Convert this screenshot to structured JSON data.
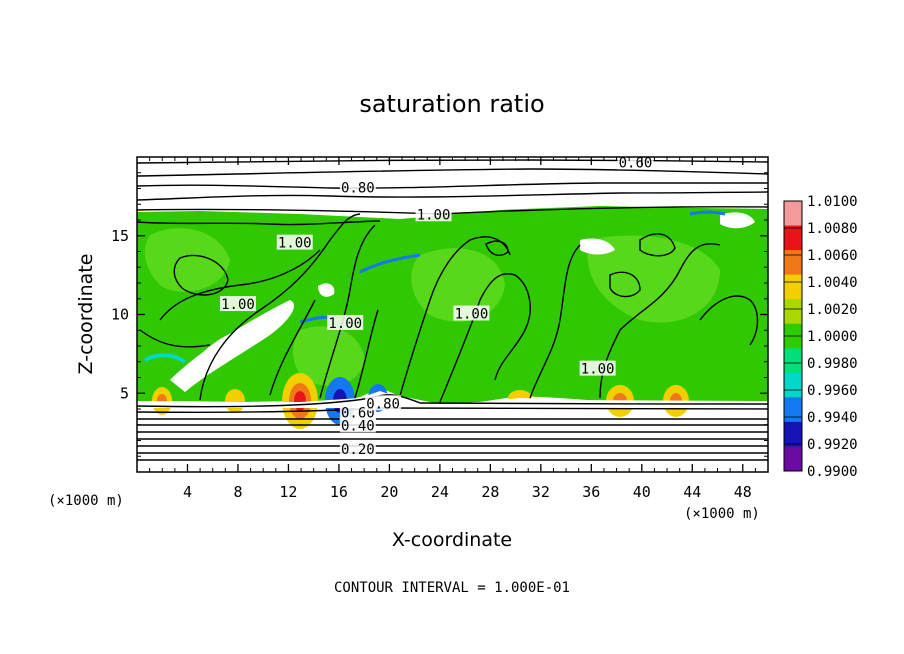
{
  "chart_data": {
    "type": "heatmap",
    "title": "saturation ratio",
    "xlabel": "X-coordinate",
    "ylabel": "Z-coordinate",
    "x_unit": "(×1000 m)",
    "z_unit": "(×1000 m)",
    "xlim": [
      0,
      50
    ],
    "ylim": [
      0,
      20
    ],
    "x_ticks": [
      4,
      8,
      12,
      16,
      20,
      24,
      28,
      32,
      36,
      40,
      44,
      48
    ],
    "y_ticks": [
      5,
      10,
      15
    ],
    "footer": "CONTOUR INTERVAL = 1.000E-01",
    "colorbar": {
      "labels": [
        "1.0100",
        "1.0080",
        "1.0060",
        "1.0040",
        "1.0020",
        "1.0000",
        "0.9980",
        "0.9960",
        "0.9940",
        "0.9920",
        "0.9900"
      ],
      "colors": [
        "#f59a9a",
        "#e8141a",
        "#f07818",
        "#f2d000",
        "#a8d800",
        "#2ecc00",
        "#00e07a",
        "#00d8c8",
        "#1478f0",
        "#1414b4",
        "#6a0aa0"
      ]
    },
    "contour_labels": [
      {
        "text": "0.20",
        "x": 17.5,
        "z": 1.4
      },
      {
        "text": "0.40",
        "x": 17.5,
        "z": 2.9
      },
      {
        "text": "0.60",
        "x": 17.5,
        "z": 3.7
      },
      {
        "text": "0.80",
        "x": 19.5,
        "z": 4.3
      },
      {
        "text": "0.80",
        "x": 17.5,
        "z": 18.0
      },
      {
        "text": "0.60",
        "x": 39.5,
        "z": 19.6
      },
      {
        "text": "1.00",
        "x": 23.5,
        "z": 16.3
      },
      {
        "text": "1.00",
        "x": 12.5,
        "z": 14.5
      },
      {
        "text": "1.00",
        "x": 26.5,
        "z": 10.0
      },
      {
        "text": "1.00",
        "x": 36.5,
        "z": 6.5
      },
      {
        "text": "1.00",
        "x": 8.0,
        "z": 10.6
      },
      {
        "text": "1.00",
        "x": 16.5,
        "z": 9.4
      }
    ]
  }
}
